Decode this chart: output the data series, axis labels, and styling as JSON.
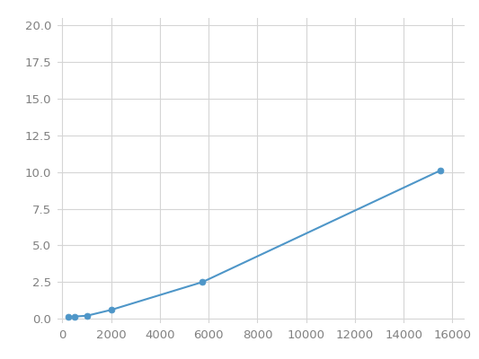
{
  "x": [
    250,
    500,
    1000,
    2000,
    5750,
    15500
  ],
  "y": [
    0.1,
    0.15,
    0.2,
    0.6,
    2.5,
    10.1
  ],
  "line_color": "#4e96c8",
  "marker_color": "#4e96c8",
  "marker_size": 5,
  "xlim": [
    -200,
    16500
  ],
  "ylim": [
    -0.3,
    20.5
  ],
  "xticks": [
    0,
    2000,
    4000,
    6000,
    8000,
    10000,
    12000,
    14000,
    16000
  ],
  "yticks": [
    0.0,
    2.5,
    5.0,
    7.5,
    10.0,
    12.5,
    15.0,
    17.5,
    20.0
  ],
  "grid_color": "#d5d5d5",
  "bg_color": "#ffffff",
  "fig_color": "#ffffff",
  "tick_label_color": "#808080",
  "tick_fontsize": 9.5
}
